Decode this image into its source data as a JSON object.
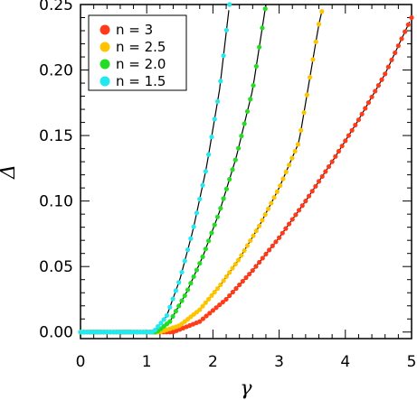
{
  "chart_data": {
    "type": "scatter",
    "xlabel": "γ",
    "ylabel": "Δ",
    "xlim": [
      0,
      5
    ],
    "ylim": [
      -0.005,
      0.25
    ],
    "x_ticks": [
      "0",
      "1",
      "2",
      "3",
      "4",
      "5"
    ],
    "y_ticks": [
      "0.00",
      "0.05",
      "0.10",
      "0.15",
      "0.20",
      "0.25"
    ],
    "grid": false,
    "legend_position": "top-left",
    "series": [
      {
        "name": "n = 3",
        "color": "#ff3b1a",
        "points": [
          [
            0.0,
            0.0
          ],
          [
            1.4,
            0.0
          ],
          [
            1.8,
            0.008
          ],
          [
            2.2,
            0.025
          ],
          [
            2.6,
            0.047
          ],
          [
            3.0,
            0.072
          ],
          [
            3.4,
            0.1
          ],
          [
            3.8,
            0.13
          ],
          [
            4.2,
            0.162
          ],
          [
            4.6,
            0.197
          ],
          [
            5.0,
            0.24
          ]
        ]
      },
      {
        "name": "n = 2.5",
        "color": "#ffc400",
        "points": [
          [
            0.0,
            0.0
          ],
          [
            1.2,
            0.0
          ],
          [
            1.5,
            0.005
          ],
          [
            1.8,
            0.017
          ],
          [
            2.1,
            0.035
          ],
          [
            2.4,
            0.056
          ],
          [
            2.7,
            0.081
          ],
          [
            3.0,
            0.11
          ],
          [
            3.3,
            0.145
          ],
          [
            3.6,
            0.235
          ],
          [
            3.67,
            0.25
          ]
        ]
      },
      {
        "name": "n = 2.0",
        "color": "#22dd22",
        "points": [
          [
            0.0,
            0.0
          ],
          [
            1.15,
            0.0
          ],
          [
            1.35,
            0.008
          ],
          [
            1.6,
            0.03
          ],
          [
            1.85,
            0.058
          ],
          [
            2.1,
            0.092
          ],
          [
            2.35,
            0.133
          ],
          [
            2.6,
            0.185
          ],
          [
            2.8,
            0.25
          ]
        ]
      },
      {
        "name": "n = 1.5",
        "color": "#22e8f0",
        "points": [
          [
            0.0,
            0.0
          ],
          [
            1.1,
            0.0
          ],
          [
            1.3,
            0.012
          ],
          [
            1.5,
            0.04
          ],
          [
            1.7,
            0.078
          ],
          [
            1.9,
            0.125
          ],
          [
            2.1,
            0.185
          ],
          [
            2.25,
            0.25
          ]
        ]
      }
    ]
  }
}
